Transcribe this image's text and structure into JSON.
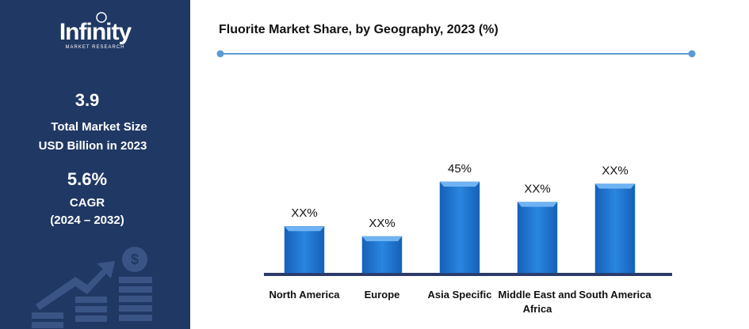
{
  "sidebar": {
    "brand": "Infinity",
    "brand_sub": "MARKET RESEARCH",
    "market_size": "3.9",
    "market_size_label_1": "Total Market Size",
    "market_size_label_2": "USD Billion in 2023",
    "cagr": "5.6%",
    "cagr_label": "CAGR",
    "cagr_period": "(2024 – 2032)"
  },
  "chart_data": {
    "type": "bar",
    "title": "Fluorite Market Share, by Geography, 2023 (%)",
    "categories": [
      "North America",
      "Europe",
      "Asia Specific",
      "Middle East and Africa",
      "South America"
    ],
    "values": [
      23,
      18,
      45,
      35,
      44
    ],
    "value_labels": [
      "XX%",
      "XX%",
      "45%",
      "XX%",
      "XX%"
    ],
    "color": "#1a73d1"
  }
}
